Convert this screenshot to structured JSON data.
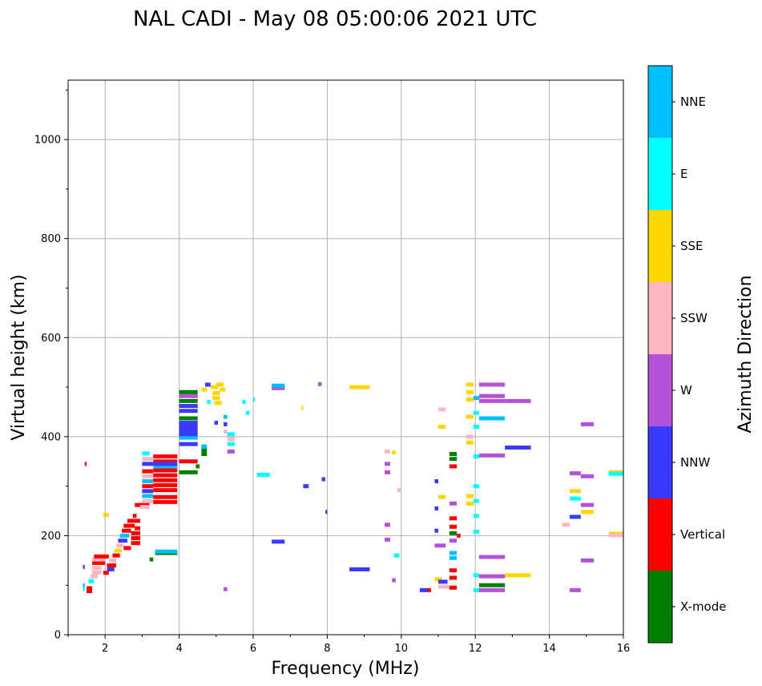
{
  "chart_data": {
    "type": "scatter",
    "title": "NAL CADI - May 08 05:00:06 2021 UTC",
    "xlabel": "Frequency (MHz)",
    "ylabel": "Virtual height (km)",
    "xlim": [
      1,
      16
    ],
    "ylim": [
      0,
      1120
    ],
    "xticks": [
      2,
      4,
      6,
      8,
      10,
      12,
      14,
      16
    ],
    "yticks": [
      0,
      200,
      400,
      600,
      800,
      1000
    ],
    "xtick_labels": [
      "2",
      "4",
      "6",
      "8",
      "10",
      "12",
      "14",
      "16"
    ],
    "ytick_labels": [
      "0",
      "200",
      "400",
      "600",
      "800",
      "1000"
    ],
    "grid": true,
    "colorbar": {
      "title": "Azimuth Direction",
      "categories": [
        "X-mode",
        "Vertical",
        "NNW",
        "W",
        "SSW",
        "SSE",
        "E",
        "NNE"
      ],
      "colors": {
        "X-mode": "#008000",
        "Vertical": "#ff0000",
        "NNW": "#3a3aff",
        "W": "#b452d8",
        "SSW": "#ffb6c1",
        "SSE": "#ffd700",
        "E": "#00ffff",
        "NNE": "#00bfff"
      }
    },
    "echo_segments": [
      {
        "f0": 1.4,
        "f1": 1.45,
        "h": 92,
        "c": "E"
      },
      {
        "f0": 1.4,
        "f1": 1.45,
        "h": 100,
        "c": "NNE"
      },
      {
        "f0": 1.4,
        "f1": 1.45,
        "h": 137,
        "c": "NNW"
      },
      {
        "f0": 1.45,
        "f1": 1.5,
        "h": 345,
        "c": "Vertical"
      },
      {
        "f0": 1.5,
        "f1": 1.65,
        "h": 88,
        "c": "Vertical"
      },
      {
        "f0": 1.5,
        "f1": 1.65,
        "h": 94,
        "c": "Vertical"
      },
      {
        "f0": 1.55,
        "f1": 1.7,
        "h": 108,
        "c": "E"
      },
      {
        "f0": 1.6,
        "f1": 1.8,
        "h": 118,
        "c": "SSW"
      },
      {
        "f0": 1.65,
        "f1": 1.9,
        "h": 126,
        "c": "SSW"
      },
      {
        "f0": 1.65,
        "f1": 1.9,
        "h": 135,
        "c": "SSW"
      },
      {
        "f0": 1.65,
        "f1": 2.0,
        "h": 145,
        "c": "Vertical"
      },
      {
        "f0": 1.65,
        "f1": 2.0,
        "h": 152,
        "c": "SSW"
      },
      {
        "f0": 1.7,
        "f1": 2.1,
        "h": 158,
        "c": "Vertical"
      },
      {
        "f0": 1.95,
        "f1": 2.1,
        "h": 242,
        "c": "SSE"
      },
      {
        "f0": 1.95,
        "f1": 2.1,
        "h": 125,
        "c": "Vertical"
      },
      {
        "f0": 2.05,
        "f1": 2.25,
        "h": 132,
        "c": "NNW"
      },
      {
        "f0": 2.05,
        "f1": 2.3,
        "h": 140,
        "c": "Vertical"
      },
      {
        "f0": 2.1,
        "f1": 2.3,
        "h": 150,
        "c": "SSW"
      },
      {
        "f0": 2.2,
        "f1": 2.4,
        "h": 160,
        "c": "Vertical"
      },
      {
        "f0": 2.25,
        "f1": 2.45,
        "h": 170,
        "c": "SSE"
      },
      {
        "f0": 2.3,
        "f1": 2.5,
        "h": 180,
        "c": "SSW"
      },
      {
        "f0": 2.35,
        "f1": 2.6,
        "h": 190,
        "c": "NNW"
      },
      {
        "f0": 2.4,
        "f1": 2.65,
        "h": 200,
        "c": "NNE"
      },
      {
        "f0": 2.45,
        "f1": 2.7,
        "h": 210,
        "c": "Vertical"
      },
      {
        "f0": 2.5,
        "f1": 2.8,
        "h": 220,
        "c": "Vertical"
      },
      {
        "f0": 2.6,
        "f1": 2.95,
        "h": 230,
        "c": "Vertical"
      },
      {
        "f0": 2.5,
        "f1": 2.7,
        "h": 175,
        "c": "Vertical"
      },
      {
        "f0": 2.7,
        "f1": 2.95,
        "h": 185,
        "c": "Vertical"
      },
      {
        "f0": 2.7,
        "f1": 2.95,
        "h": 195,
        "c": "Vertical"
      },
      {
        "f0": 2.7,
        "f1": 2.95,
        "h": 205,
        "c": "Vertical"
      },
      {
        "f0": 2.8,
        "f1": 2.95,
        "h": 215,
        "c": "Vertical"
      },
      {
        "f0": 2.75,
        "f1": 2.85,
        "h": 240,
        "c": "Vertical"
      },
      {
        "f0": 2.8,
        "f1": 3.2,
        "h": 262,
        "c": "Vertical"
      },
      {
        "f0": 2.95,
        "f1": 3.2,
        "h": 258,
        "c": "SSW"
      },
      {
        "f0": 3.0,
        "f1": 3.3,
        "h": 270,
        "c": "SSW"
      },
      {
        "f0": 3.0,
        "f1": 3.3,
        "h": 280,
        "c": "NNE"
      },
      {
        "f0": 3.0,
        "f1": 3.3,
        "h": 290,
        "c": "NNW"
      },
      {
        "f0": 3.0,
        "f1": 3.3,
        "h": 300,
        "c": "Vertical"
      },
      {
        "f0": 3.0,
        "f1": 3.3,
        "h": 310,
        "c": "NNE"
      },
      {
        "f0": 3.0,
        "f1": 3.3,
        "h": 320,
        "c": "SSW"
      },
      {
        "f0": 3.0,
        "f1": 3.3,
        "h": 330,
        "c": "Vertical"
      },
      {
        "f0": 3.0,
        "f1": 3.3,
        "h": 345,
        "c": "NNW"
      },
      {
        "f0": 3.0,
        "f1": 3.3,
        "h": 355,
        "c": "SSW"
      },
      {
        "f0": 3.0,
        "f1": 3.2,
        "h": 366,
        "c": "E"
      },
      {
        "f0": 3.3,
        "f1": 3.95,
        "h": 268,
        "c": "Vertical"
      },
      {
        "f0": 3.3,
        "f1": 3.95,
        "h": 278,
        "c": "Vertical"
      },
      {
        "f0": 3.3,
        "f1": 3.95,
        "h": 292,
        "c": "Vertical"
      },
      {
        "f0": 3.3,
        "f1": 3.95,
        "h": 302,
        "c": "Vertical"
      },
      {
        "f0": 3.3,
        "f1": 3.95,
        "h": 312,
        "c": "Vertical"
      },
      {
        "f0": 3.3,
        "f1": 3.95,
        "h": 322,
        "c": "Vertical"
      },
      {
        "f0": 3.3,
        "f1": 3.95,
        "h": 332,
        "c": "Vertical"
      },
      {
        "f0": 3.3,
        "f1": 3.95,
        "h": 340,
        "c": "NNE"
      },
      {
        "f0": 3.3,
        "f1": 3.95,
        "h": 350,
        "c": "Vertical"
      },
      {
        "f0": 3.3,
        "f1": 3.95,
        "h": 360,
        "c": "Vertical"
      },
      {
        "f0": 3.3,
        "f1": 3.95,
        "h": 345,
        "c": "NNW"
      },
      {
        "f0": 3.35,
        "f1": 3.95,
        "h": 165,
        "c": "X-mode"
      },
      {
        "f0": 3.35,
        "f1": 3.95,
        "h": 168,
        "c": "NNE"
      },
      {
        "f0": 3.2,
        "f1": 3.3,
        "h": 152,
        "c": "X-mode"
      },
      {
        "f0": 4.0,
        "f1": 4.5,
        "h": 328,
        "c": "X-mode"
      },
      {
        "f0": 4.0,
        "f1": 4.5,
        "h": 350,
        "c": "Vertical"
      },
      {
        "f0": 4.45,
        "f1": 4.55,
        "h": 340,
        "c": "X-mode"
      },
      {
        "f0": 4.6,
        "f1": 4.75,
        "h": 365,
        "c": "X-mode"
      },
      {
        "f0": 4.6,
        "f1": 4.75,
        "h": 372,
        "c": "X-mode"
      },
      {
        "f0": 4.6,
        "f1": 4.75,
        "h": 380,
        "c": "NNE"
      },
      {
        "f0": 4.0,
        "f1": 4.5,
        "h": 398,
        "c": "NNE"
      },
      {
        "f0": 4.0,
        "f1": 4.5,
        "h": 405,
        "c": "NNW"
      },
      {
        "f0": 4.0,
        "f1": 4.5,
        "h": 412,
        "c": "NNW"
      },
      {
        "f0": 4.0,
        "f1": 4.5,
        "h": 420,
        "c": "NNW"
      },
      {
        "f0": 4.0,
        "f1": 4.5,
        "h": 428,
        "c": "NNW"
      },
      {
        "f0": 4.0,
        "f1": 4.5,
        "h": 437,
        "c": "X-mode"
      },
      {
        "f0": 4.0,
        "f1": 4.5,
        "h": 452,
        "c": "NNW"
      },
      {
        "f0": 4.0,
        "f1": 4.5,
        "h": 462,
        "c": "NNW"
      },
      {
        "f0": 4.0,
        "f1": 4.5,
        "h": 472,
        "c": "X-mode"
      },
      {
        "f0": 4.0,
        "f1": 4.5,
        "h": 482,
        "c": "W"
      },
      {
        "f0": 4.0,
        "f1": 4.5,
        "h": 490,
        "c": "X-mode"
      },
      {
        "f0": 4.0,
        "f1": 4.5,
        "h": 385,
        "c": "NNW"
      },
      {
        "f0": 4.6,
        "f1": 4.75,
        "h": 495,
        "c": "SSE"
      },
      {
        "f0": 4.7,
        "f1": 4.85,
        "h": 505,
        "c": "NNW"
      },
      {
        "f0": 4.75,
        "f1": 4.85,
        "h": 470,
        "c": "E"
      },
      {
        "f0": 4.85,
        "f1": 5.05,
        "h": 500,
        "c": "SSE"
      },
      {
        "f0": 4.9,
        "f1": 5.1,
        "h": 488,
        "c": "SSE"
      },
      {
        "f0": 4.9,
        "f1": 5.1,
        "h": 478,
        "c": "SSE"
      },
      {
        "f0": 4.95,
        "f1": 5.15,
        "h": 468,
        "c": "SSE"
      },
      {
        "f0": 5.0,
        "f1": 5.2,
        "h": 505,
        "c": "SSE"
      },
      {
        "f0": 5.1,
        "f1": 5.25,
        "h": 495,
        "c": "SSE"
      },
      {
        "f0": 4.95,
        "f1": 5.05,
        "h": 428,
        "c": "NNW"
      },
      {
        "f0": 5.2,
        "f1": 5.3,
        "h": 440,
        "c": "NNE"
      },
      {
        "f0": 5.2,
        "f1": 5.3,
        "h": 425,
        "c": "NNW"
      },
      {
        "f0": 5.2,
        "f1": 5.3,
        "h": 410,
        "c": "SSW"
      },
      {
        "f0": 5.3,
        "f1": 5.5,
        "h": 405,
        "c": "E"
      },
      {
        "f0": 5.3,
        "f1": 5.5,
        "h": 395,
        "c": "SSW"
      },
      {
        "f0": 5.3,
        "f1": 5.5,
        "h": 385,
        "c": "E"
      },
      {
        "f0": 5.3,
        "f1": 5.5,
        "h": 370,
        "c": "W"
      },
      {
        "f0": 5.2,
        "f1": 5.3,
        "h": 92,
        "c": "W"
      },
      {
        "f0": 5.7,
        "f1": 5.8,
        "h": 470,
        "c": "E"
      },
      {
        "f0": 5.8,
        "f1": 5.9,
        "h": 448,
        "c": "E"
      },
      {
        "f0": 6.0,
        "f1": 6.05,
        "h": 475,
        "c": "E"
      },
      {
        "f0": 6.1,
        "f1": 6.45,
        "h": 323,
        "c": "E"
      },
      {
        "f0": 6.5,
        "f1": 6.85,
        "h": 188,
        "c": "NNW"
      },
      {
        "f0": 6.5,
        "f1": 6.85,
        "h": 498,
        "c": "W"
      },
      {
        "f0": 6.5,
        "f1": 6.85,
        "h": 503,
        "c": "NNE"
      },
      {
        "f0": 7.3,
        "f1": 7.35,
        "h": 458,
        "c": "SSE"
      },
      {
        "f0": 7.35,
        "f1": 7.5,
        "h": 300,
        "c": "NNW"
      },
      {
        "f0": 7.75,
        "f1": 7.85,
        "h": 506,
        "c": "W"
      },
      {
        "f0": 7.85,
        "f1": 7.95,
        "h": 314,
        "c": "NNW"
      },
      {
        "f0": 7.95,
        "f1": 8.0,
        "h": 248,
        "c": "NNW"
      },
      {
        "f0": 8.6,
        "f1": 9.15,
        "h": 500,
        "c": "SSE"
      },
      {
        "f0": 8.6,
        "f1": 9.15,
        "h": 132,
        "c": "NNW"
      },
      {
        "f0": 9.55,
        "f1": 9.7,
        "h": 370,
        "c": "SSW"
      },
      {
        "f0": 9.75,
        "f1": 9.85,
        "h": 368,
        "c": "SSE"
      },
      {
        "f0": 9.55,
        "f1": 9.7,
        "h": 345,
        "c": "W"
      },
      {
        "f0": 9.55,
        "f1": 9.7,
        "h": 328,
        "c": "W"
      },
      {
        "f0": 9.9,
        "f1": 10.0,
        "h": 292,
        "c": "SSW"
      },
      {
        "f0": 9.55,
        "f1": 9.7,
        "h": 222,
        "c": "W"
      },
      {
        "f0": 9.55,
        "f1": 9.7,
        "h": 192,
        "c": "W"
      },
      {
        "f0": 9.8,
        "f1": 9.95,
        "h": 160,
        "c": "E"
      },
      {
        "f0": 9.75,
        "f1": 9.85,
        "h": 110,
        "c": "W"
      },
      {
        "f0": 10.5,
        "f1": 10.8,
        "h": 90,
        "c": "NNW"
      },
      {
        "f0": 10.7,
        "f1": 10.8,
        "h": 90,
        "c": "Vertical"
      },
      {
        "f0": 10.9,
        "f1": 11.0,
        "h": 310,
        "c": "NNW"
      },
      {
        "f0": 10.9,
        "f1": 11.0,
        "h": 255,
        "c": "NNW"
      },
      {
        "f0": 10.9,
        "f1": 11.0,
        "h": 210,
        "c": "NNW"
      },
      {
        "f0": 10.9,
        "f1": 11.2,
        "h": 180,
        "c": "W"
      },
      {
        "f0": 10.9,
        "f1": 11.1,
        "h": 112,
        "c": "SSE"
      },
      {
        "f0": 11.0,
        "f1": 11.2,
        "h": 455,
        "c": "SSW"
      },
      {
        "f0": 11.0,
        "f1": 11.2,
        "h": 420,
        "c": "SSE"
      },
      {
        "f0": 11.0,
        "f1": 11.2,
        "h": 278,
        "c": "SSE"
      },
      {
        "f0": 11.0,
        "f1": 11.25,
        "h": 107,
        "c": "NNW"
      },
      {
        "f0": 11.0,
        "f1": 11.3,
        "h": 97,
        "c": "SSW"
      },
      {
        "f0": 11.3,
        "f1": 11.5,
        "h": 365,
        "c": "X-mode"
      },
      {
        "f0": 11.3,
        "f1": 11.5,
        "h": 355,
        "c": "X-mode"
      },
      {
        "f0": 11.3,
        "f1": 11.5,
        "h": 340,
        "c": "Vertical"
      },
      {
        "f0": 11.3,
        "f1": 11.5,
        "h": 235,
        "c": "Vertical"
      },
      {
        "f0": 11.3,
        "f1": 11.5,
        "h": 218,
        "c": "Vertical"
      },
      {
        "f0": 11.3,
        "f1": 11.5,
        "h": 205,
        "c": "X-mode"
      },
      {
        "f0": 11.3,
        "f1": 11.5,
        "h": 190,
        "c": "W"
      },
      {
        "f0": 11.3,
        "f1": 11.5,
        "h": 165,
        "c": "NNE"
      },
      {
        "f0": 11.3,
        "f1": 11.5,
        "h": 155,
        "c": "NNE"
      },
      {
        "f0": 11.3,
        "f1": 11.5,
        "h": 130,
        "c": "Vertical"
      },
      {
        "f0": 11.3,
        "f1": 11.5,
        "h": 115,
        "c": "Vertical"
      },
      {
        "f0": 11.3,
        "f1": 11.5,
        "h": 95,
        "c": "Vertical"
      },
      {
        "f0": 11.3,
        "f1": 11.5,
        "h": 265,
        "c": "W"
      },
      {
        "f0": 11.5,
        "f1": 11.6,
        "h": 200,
        "c": "Vertical"
      },
      {
        "f0": 11.75,
        "f1": 11.95,
        "h": 505,
        "c": "SSE"
      },
      {
        "f0": 11.75,
        "f1": 11.95,
        "h": 490,
        "c": "SSE"
      },
      {
        "f0": 11.75,
        "f1": 11.95,
        "h": 475,
        "c": "SSE"
      },
      {
        "f0": 11.75,
        "f1": 11.95,
        "h": 440,
        "c": "SSE"
      },
      {
        "f0": 11.75,
        "f1": 11.95,
        "h": 400,
        "c": "SSW"
      },
      {
        "f0": 11.75,
        "f1": 11.95,
        "h": 388,
        "c": "SSE"
      },
      {
        "f0": 11.75,
        "f1": 11.95,
        "h": 280,
        "c": "SSE"
      },
      {
        "f0": 11.75,
        "f1": 11.95,
        "h": 265,
        "c": "SSE"
      },
      {
        "f0": 11.95,
        "f1": 12.1,
        "h": 478,
        "c": "NNE"
      },
      {
        "f0": 11.95,
        "f1": 12.1,
        "h": 448,
        "c": "E"
      },
      {
        "f0": 11.95,
        "f1": 12.1,
        "h": 420,
        "c": "E"
      },
      {
        "f0": 11.95,
        "f1": 12.1,
        "h": 360,
        "c": "E"
      },
      {
        "f0": 11.95,
        "f1": 12.1,
        "h": 300,
        "c": "E"
      },
      {
        "f0": 11.95,
        "f1": 12.1,
        "h": 270,
        "c": "E"
      },
      {
        "f0": 11.95,
        "f1": 12.1,
        "h": 240,
        "c": "E"
      },
      {
        "f0": 11.95,
        "f1": 12.1,
        "h": 208,
        "c": "E"
      },
      {
        "f0": 11.95,
        "f1": 12.1,
        "h": 120,
        "c": "E"
      },
      {
        "f0": 11.95,
        "f1": 12.1,
        "h": 90,
        "c": "E"
      },
      {
        "f0": 12.1,
        "f1": 12.8,
        "h": 505,
        "c": "W"
      },
      {
        "f0": 12.1,
        "f1": 12.8,
        "h": 482,
        "c": "W"
      },
      {
        "f0": 12.1,
        "f1": 12.8,
        "h": 472,
        "c": "W"
      },
      {
        "f0": 12.1,
        "f1": 12.8,
        "h": 437,
        "c": "NNE"
      },
      {
        "f0": 12.1,
        "f1": 12.8,
        "h": 362,
        "c": "W"
      },
      {
        "f0": 12.1,
        "f1": 12.8,
        "h": 157,
        "c": "W"
      },
      {
        "f0": 12.1,
        "f1": 12.8,
        "h": 118,
        "c": "W"
      },
      {
        "f0": 12.1,
        "f1": 12.8,
        "h": 90,
        "c": "W"
      },
      {
        "f0": 12.1,
        "f1": 12.8,
        "h": 100,
        "c": "X-mode"
      },
      {
        "f0": 12.8,
        "f1": 13.5,
        "h": 472,
        "c": "W"
      },
      {
        "f0": 12.8,
        "f1": 13.5,
        "h": 378,
        "c": "NNW"
      },
      {
        "f0": 12.8,
        "f1": 13.5,
        "h": 120,
        "c": "SSE"
      },
      {
        "f0": 14.35,
        "f1": 14.55,
        "h": 222,
        "c": "SSW"
      },
      {
        "f0": 14.55,
        "f1": 14.85,
        "h": 326,
        "c": "W"
      },
      {
        "f0": 14.55,
        "f1": 14.85,
        "h": 290,
        "c": "SSE"
      },
      {
        "f0": 14.55,
        "f1": 14.85,
        "h": 275,
        "c": "E"
      },
      {
        "f0": 14.55,
        "f1": 14.85,
        "h": 238,
        "c": "NNW"
      },
      {
        "f0": 14.55,
        "f1": 14.85,
        "h": 90,
        "c": "W"
      },
      {
        "f0": 14.85,
        "f1": 15.2,
        "h": 425,
        "c": "W"
      },
      {
        "f0": 14.85,
        "f1": 15.2,
        "h": 320,
        "c": "W"
      },
      {
        "f0": 14.85,
        "f1": 15.2,
        "h": 262,
        "c": "W"
      },
      {
        "f0": 14.85,
        "f1": 15.2,
        "h": 248,
        "c": "SSE"
      },
      {
        "f0": 14.85,
        "f1": 15.2,
        "h": 150,
        "c": "W"
      },
      {
        "f0": 15.6,
        "f1": 16.0,
        "h": 328,
        "c": "SSE"
      },
      {
        "f0": 15.6,
        "f1": 16.0,
        "h": 325,
        "c": "E"
      },
      {
        "f0": 15.6,
        "f1": 16.0,
        "h": 204,
        "c": "SSE"
      },
      {
        "f0": 15.6,
        "f1": 16.0,
        "h": 201,
        "c": "SSW"
      }
    ]
  }
}
